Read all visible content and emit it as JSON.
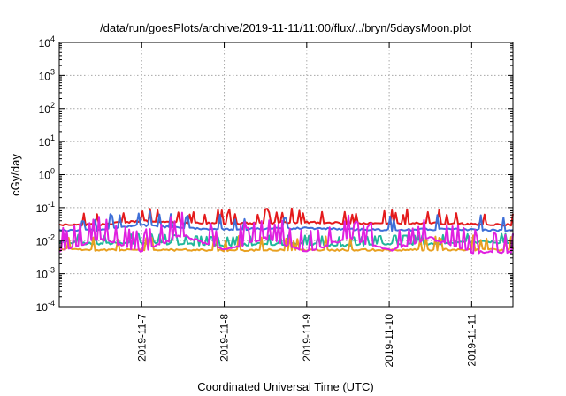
{
  "chart_data": {
    "type": "line",
    "title": "/data/run/goesPlots/archive/2019-11-11/11:00/flux/../bryn/5daysMoon.plot",
    "xlabel": "Coordinated Universal Time (UTC)",
    "ylabel": "cGy/day",
    "yscale": "log",
    "ylim": [
      0.0001,
      10000
    ],
    "y_ticks": [
      {
        "base": "10",
        "exp": "-4"
      },
      {
        "base": "10",
        "exp": "-3"
      },
      {
        "base": "10",
        "exp": "-2"
      },
      {
        "base": "10",
        "exp": "-1"
      },
      {
        "base": "10",
        "exp": "0"
      },
      {
        "base": "10",
        "exp": "1"
      },
      {
        "base": "10",
        "exp": "2"
      },
      {
        "base": "10",
        "exp": "3"
      },
      {
        "base": "10",
        "exp": "4"
      }
    ],
    "xlim": [
      "2019-11-06T00:00",
      "2019-11-11T12:00"
    ],
    "x_ticks": [
      "2019-11-7",
      "2019-11-8",
      "2019-11-9",
      "2019-11-10",
      "2019-11-11"
    ],
    "x_tick_dates": [
      "2019-11-07T00:00",
      "2019-11-08T00:00",
      "2019-11-09T00:00",
      "2019-11-10T00:00",
      "2019-11-11T00:00"
    ],
    "grid": true,
    "series": [
      {
        "color": "#e41a1c",
        "x": [
          "2019-11-06T00:00",
          "2019-11-06T12:00",
          "2019-11-07T00:00",
          "2019-11-07T12:00",
          "2019-11-08T00:00",
          "2019-11-08T12:00",
          "2019-11-09T00:00",
          "2019-11-09T12:00",
          "2019-11-10T00:00",
          "2019-11-10T12:00",
          "2019-11-11T00:00",
          "2019-11-11T12:00"
        ],
        "y": [
          0.03,
          0.031,
          0.04,
          0.035,
          0.033,
          0.034,
          0.036,
          0.034,
          0.033,
          0.034,
          0.032,
          0.03
        ]
      },
      {
        "color": "#3e6fd8",
        "x": [
          "2019-11-06T00:00",
          "2019-11-06T12:00",
          "2019-11-07T00:00",
          "2019-11-07T12:00",
          "2019-11-08T00:00",
          "2019-11-08T12:00",
          "2019-11-09T00:00",
          "2019-11-09T12:00",
          "2019-11-10T00:00",
          "2019-11-10T12:00",
          "2019-11-11T00:00",
          "2019-11-11T12:00"
        ],
        "y": [
          0.02,
          0.021,
          0.03,
          0.024,
          0.022,
          0.023,
          0.024,
          0.022,
          0.021,
          0.022,
          0.022,
          0.02
        ]
      },
      {
        "color": "#20b79a",
        "x": [
          "2019-11-06T00:00",
          "2019-11-06T12:00",
          "2019-11-07T00:00",
          "2019-11-07T12:00",
          "2019-11-08T00:00",
          "2019-11-08T12:00",
          "2019-11-09T00:00",
          "2019-11-09T12:00",
          "2019-11-10T00:00",
          "2019-11-10T12:00",
          "2019-11-11T00:00",
          "2019-11-11T12:00"
        ],
        "y": [
          0.009,
          0.008,
          0.009,
          0.008,
          0.007,
          0.008,
          0.008,
          0.007,
          0.008,
          0.008,
          0.009,
          0.009
        ]
      },
      {
        "color": "#e8a020",
        "x": [
          "2019-11-06T00:00",
          "2019-11-06T12:00",
          "2019-11-07T00:00",
          "2019-11-07T12:00",
          "2019-11-08T00:00",
          "2019-11-08T12:00",
          "2019-11-09T00:00",
          "2019-11-09T12:00",
          "2019-11-10T00:00",
          "2019-11-10T12:00",
          "2019-11-11T00:00",
          "2019-11-11T12:00"
        ],
        "y": [
          0.0055,
          0.0052,
          0.0054,
          0.0052,
          0.0051,
          0.0052,
          0.0053,
          0.0052,
          0.0052,
          0.0053,
          0.0053,
          0.0052
        ]
      },
      {
        "color": "#e020e0",
        "x": [
          "2019-11-06T00:00",
          "2019-11-06T12:00",
          "2019-11-07T00:00",
          "2019-11-07T12:00",
          "2019-11-08T00:00",
          "2019-11-08T12:00",
          "2019-11-09T00:00",
          "2019-11-09T12:00",
          "2019-11-10T00:00",
          "2019-11-10T12:00",
          "2019-11-11T00:00",
          "2019-11-11T12:00"
        ],
        "y": [
          0.0045,
          0.012,
          0.0045,
          0.015,
          0.005,
          0.012,
          0.0045,
          0.012,
          0.005,
          0.012,
          0.0045,
          0.0045
        ]
      }
    ]
  }
}
